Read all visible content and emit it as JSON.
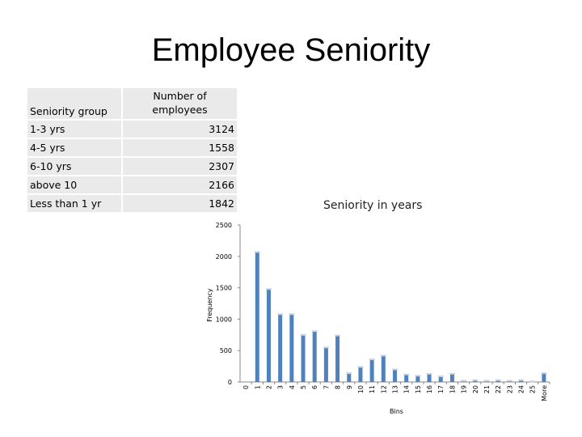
{
  "title": "Employee Seniority",
  "table": {
    "headers": [
      "Seniority group",
      "Number of employees"
    ],
    "rows": [
      {
        "group": "1-3 yrs",
        "count": "3124"
      },
      {
        "group": "4-5 yrs",
        "count": "1558"
      },
      {
        "group": "6-10 yrs",
        "count": "2307"
      },
      {
        "group": "above 10",
        "count": "2166"
      },
      {
        "group": "Less than 1 yr",
        "count": "1842"
      }
    ]
  },
  "chart_data": {
    "type": "bar",
    "title": "Seniority in years",
    "xlabel": "Bins",
    "ylabel": "Frequency",
    "ylim": [
      0,
      2500
    ],
    "yticks": [
      0,
      500,
      1000,
      1500,
      2000,
      2500
    ],
    "grid": false,
    "bar_color": "#4f81bd",
    "categories": [
      "0",
      "1",
      "2",
      "3",
      "4",
      "5",
      "6",
      "7",
      "8",
      "9",
      "10",
      "11",
      "12",
      "13",
      "14",
      "15",
      "16",
      "17",
      "18",
      "19",
      "20",
      "21",
      "22",
      "23",
      "24",
      "25",
      "More"
    ],
    "values": [
      0,
      2070,
      1480,
      1080,
      1080,
      750,
      810,
      550,
      740,
      140,
      240,
      360,
      420,
      200,
      120,
      100,
      130,
      90,
      130,
      20,
      30,
      20,
      30,
      20,
      30,
      10,
      140
    ]
  }
}
